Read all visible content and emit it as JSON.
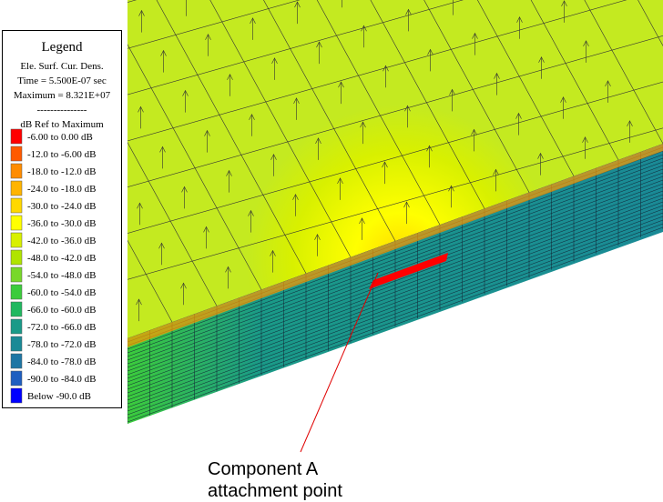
{
  "legend": {
    "title": "Legend",
    "lines": [
      "Ele. Surf. Cur. Dens.",
      "Time = 5.500E-07 sec",
      "Maximum = 8.321E+07",
      "---------------",
      "dB Ref to Maximum"
    ],
    "entries": [
      {
        "label": "-6.00 to  0.00 dB",
        "color": "#ff0000"
      },
      {
        "label": "-12.0 to -6.00 dB",
        "color": "#ff5a00"
      },
      {
        "label": "-18.0 to -12.0 dB",
        "color": "#ff8c00"
      },
      {
        "label": "-24.0 to -18.0 dB",
        "color": "#ffb400"
      },
      {
        "label": "-30.0 to -24.0 dB",
        "color": "#ffd800"
      },
      {
        "label": "-36.0 to -30.0 dB",
        "color": "#ffff00"
      },
      {
        "label": "-42.0 to -36.0 dB",
        "color": "#d8f000"
      },
      {
        "label": "-48.0 to -42.0 dB",
        "color": "#b0e400"
      },
      {
        "label": "-54.0 to -48.0 dB",
        "color": "#78d82a"
      },
      {
        "label": "-60.0 to -54.0 dB",
        "color": "#3ccc3c"
      },
      {
        "label": "-66.0 to -60.0 dB",
        "color": "#20b860"
      },
      {
        "label": "-72.0 to -66.0 dB",
        "color": "#1a9a88"
      },
      {
        "label": "-78.0 to -72.0 dB",
        "color": "#1a8a96"
      },
      {
        "label": "-84.0 to -78.0 dB",
        "color": "#1e76a4"
      },
      {
        "label": "-90.0 to -84.0 dB",
        "color": "#1e5ec0"
      },
      {
        "label": "Below -90.0 dB",
        "color": "#0000ff"
      }
    ]
  },
  "annotation": {
    "lines": [
      "Component A",
      "attachment point"
    ]
  }
}
